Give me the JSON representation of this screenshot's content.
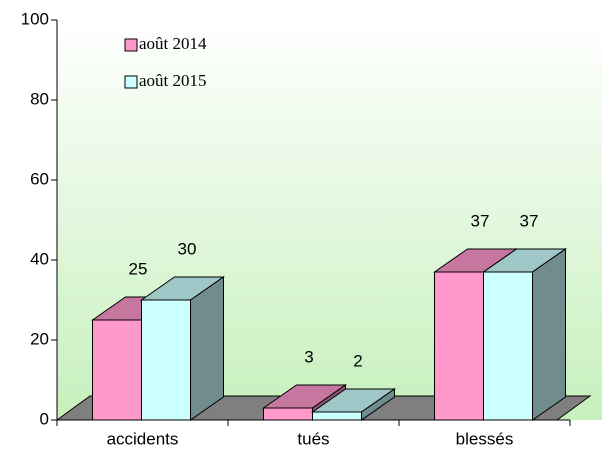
{
  "chart_data": {
    "type": "bar3d",
    "categories": [
      "accidents",
      "tués",
      "blessés"
    ],
    "series": [
      {
        "name": "août 2014",
        "color": "#ff99cc",
        "values": [
          25,
          3,
          37
        ]
      },
      {
        "name": "août 2015",
        "color": "#ccffff",
        "values": [
          30,
          2,
          37
        ]
      }
    ],
    "ylim": [
      0,
      100
    ],
    "yticks": [
      0,
      20,
      40,
      60,
      80,
      100
    ]
  }
}
